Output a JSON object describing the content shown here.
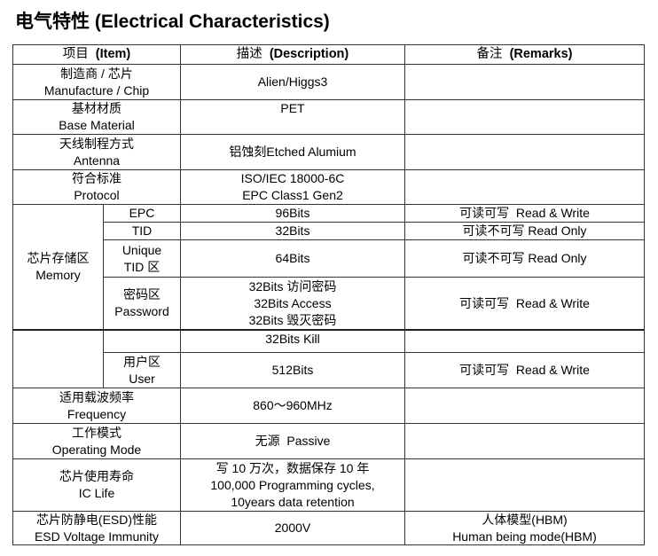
{
  "title": "电气特性 (Electrical Characteristics)",
  "headers": {
    "item_cn": "项目",
    "item_en": "(Item)",
    "desc_cn": "描述",
    "desc_en": "(Description)",
    "rem_cn": "备注",
    "rem_en": "(Remarks)"
  },
  "rows": {
    "manufacture": {
      "cn": "制造商 / 芯片",
      "en": "Manufacture / Chip",
      "desc": "Alien/Higgs3",
      "remark": ""
    },
    "base": {
      "cn": "基材材质",
      "en": "Base Material",
      "desc": "PET",
      "remark": ""
    },
    "antenna": {
      "cn": "天线制程方式",
      "en": "Antenna",
      "desc": "铝蚀刻Etched Alumium",
      "remark": ""
    },
    "protocol": {
      "cn": "符合标准",
      "en": "Protocol",
      "desc1": "ISO/IEC 18000-6C",
      "desc2": "EPC Class1 Gen2",
      "remark": ""
    },
    "memory": {
      "cn": "芯片存储区",
      "en": "Memory",
      "epc": {
        "label": "EPC",
        "desc": "96Bits",
        "remark": "可读可写  Read & Write"
      },
      "tid": {
        "label": "TID",
        "desc": "32Bits",
        "remark": "可读不可写 Read Only"
      },
      "unique": {
        "label1": "Unique",
        "label2": "TID 区",
        "desc": "64Bits",
        "remark": "可读不可写 Read Only"
      },
      "password": {
        "cn": "密码区",
        "en": "Password",
        "desc1": "32Bits 访问密码",
        "desc2": "32Bits Access",
        "desc3": "32Bits 毁灭密码",
        "desc4": "32Bits Kill",
        "remark": "可读可写  Read & Write"
      },
      "user": {
        "cn": "用户区",
        "en": "User",
        "desc": "512Bits",
        "remark": "可读可写  Read & Write"
      }
    },
    "frequency": {
      "cn": "适用载波频率",
      "en": "Frequency",
      "desc": "860～960MHz",
      "remark": ""
    },
    "mode": {
      "cn": "工作模式",
      "en": "Operating Mode",
      "desc": "无源  Passive",
      "remark": ""
    },
    "life": {
      "cn": "芯片使用寿命",
      "en": "IC Life",
      "desc1": "写 10 万次，数据保存 10 年",
      "desc2": "100,000 Programming cycles,",
      "desc3": "10years data retention",
      "remark": ""
    },
    "esd": {
      "cn": "芯片防静电(ESD)性能",
      "en": "ESD Voltage Immunity",
      "desc": "2000V",
      "remark1": "人体模型(HBM)",
      "remark2": "Human being mode(HBM)"
    }
  }
}
